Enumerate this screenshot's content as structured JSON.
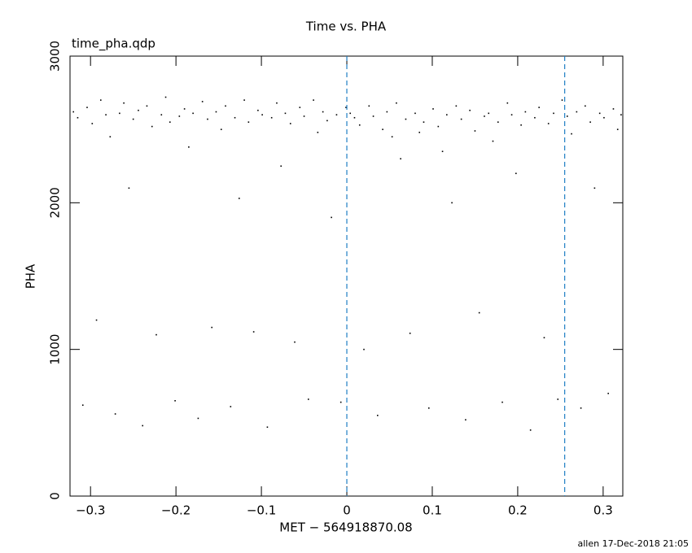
{
  "chart_data": {
    "type": "scatter",
    "title": "Time vs. PHA",
    "subtitle": "time_pha.qdp",
    "x_label": "MET − 564918870.08",
    "y_label": "PHA",
    "footer": "allen 17-Dec-2018 21:05",
    "xlim": [
      -0.324,
      0.323
    ],
    "ylim": [
      0,
      3000
    ],
    "xticks": [
      {
        "value": -0.3,
        "label": "−0.3"
      },
      {
        "value": -0.2,
        "label": "−0.2"
      },
      {
        "value": -0.1,
        "label": "−0.1"
      },
      0,
      0.1,
      0.2,
      0.3
    ],
    "yticks": [
      0,
      1000,
      2000,
      3000
    ],
    "vlines": [
      0,
      0.255
    ],
    "vline_color": "#1f7fc4",
    "color": "#000000",
    "x": [
      -0.32,
      -0.315,
      -0.309,
      -0.304,
      -0.298,
      -0.293,
      -0.288,
      -0.282,
      -0.277,
      -0.271,
      -0.266,
      -0.261,
      -0.255,
      -0.25,
      -0.244,
      -0.239,
      -0.234,
      -0.228,
      -0.223,
      -0.217,
      -0.212,
      -0.207,
      -0.201,
      -0.196,
      -0.19,
      -0.185,
      -0.18,
      -0.174,
      -0.169,
      -0.163,
      -0.158,
      -0.153,
      -0.147,
      -0.142,
      -0.136,
      -0.131,
      -0.126,
      -0.12,
      -0.115,
      -0.109,
      -0.104,
      -0.099,
      -0.093,
      -0.088,
      -0.082,
      -0.077,
      -0.072,
      -0.066,
      -0.061,
      -0.055,
      -0.05,
      -0.045,
      -0.039,
      -0.034,
      -0.028,
      -0.023,
      -0.018,
      -0.012,
      -0.007,
      -0.001,
      0.004,
      0.009,
      0.015,
      0.02,
      0.026,
      0.031,
      0.036,
      0.042,
      0.047,
      0.053,
      0.058,
      0.063,
      0.069,
      0.074,
      0.08,
      0.085,
      0.09,
      0.096,
      0.101,
      0.107,
      0.112,
      0.117,
      0.123,
      0.128,
      0.134,
      0.139,
      0.144,
      0.15,
      0.155,
      0.161,
      0.166,
      0.171,
      0.177,
      0.182,
      0.188,
      0.193,
      0.198,
      0.204,
      0.209,
      0.215,
      0.22,
      0.225,
      0.231,
      0.236,
      0.242,
      0.247,
      0.252,
      0.258,
      0.263,
      0.269,
      0.274,
      0.279,
      0.285,
      0.29,
      0.296,
      0.301,
      0.306,
      0.312,
      0.317,
      0.321
    ],
    "y": [
      2620,
      2580,
      620,
      2650,
      2540,
      1200,
      2700,
      2600,
      2450,
      560,
      2610,
      2680,
      2100,
      2570,
      2630,
      480,
      2660,
      2520,
      1100,
      2600,
      2720,
      2550,
      650,
      2590,
      2640,
      2380,
      2610,
      530,
      2690,
      2570,
      1150,
      2620,
      2500,
      2660,
      610,
      2580,
      2030,
      2700,
      2550,
      1120,
      2630,
      2600,
      470,
      2580,
      2680,
      2250,
      2610,
      2540,
      1050,
      2650,
      2590,
      660,
      2700,
      2480,
      2620,
      2560,
      1900,
      2600,
      640,
      2650,
      2610,
      2580,
      2530,
      1000,
      2660,
      2590,
      550,
      2500,
      2620,
      2450,
      2680,
      2300,
      2570,
      1110,
      2610,
      2480,
      2550,
      600,
      2640,
      2520,
      2350,
      2600,
      2000,
      2660,
      2570,
      520,
      2630,
      2490,
      1250,
      2590,
      2610,
      2420,
      2550,
      640,
      2680,
      2600,
      2200,
      2530,
      2620,
      450,
      2580,
      2650,
      1080,
      2540,
      2610,
      660,
      2700,
      2590,
      2470,
      2620,
      600,
      2660,
      2550,
      2100,
      2610,
      2580,
      700,
      2640,
      2500,
      2600
    ]
  }
}
